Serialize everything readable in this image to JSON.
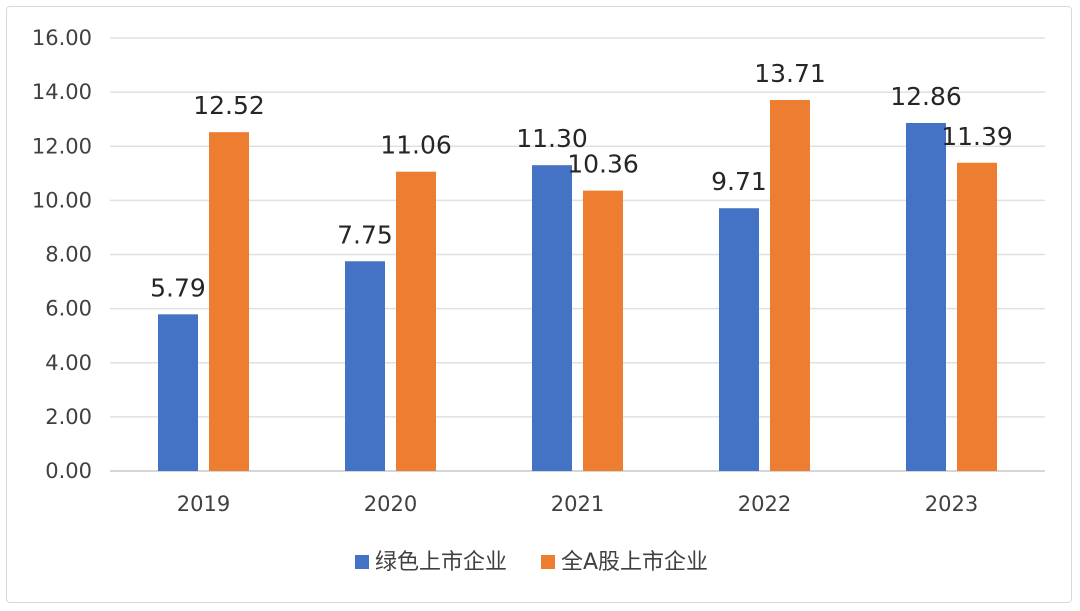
{
  "chart_data": {
    "type": "bar",
    "title": "",
    "xlabel": "",
    "ylabel": "",
    "categories": [
      "2019",
      "2020",
      "2021",
      "2022",
      "2023"
    ],
    "series": [
      {
        "name": "绿色上市企业",
        "color": "#4472c4",
        "values": [
          5.79,
          7.75,
          11.3,
          9.71,
          12.86
        ],
        "labels": [
          "5.79",
          "7.75",
          "11.30",
          "9.71",
          "12.86"
        ]
      },
      {
        "name": "全A股上市企业",
        "color": "#ed7d31",
        "values": [
          12.52,
          11.06,
          10.36,
          13.71,
          11.39
        ],
        "labels": [
          "12.52",
          "11.06",
          "10.36",
          "13.71",
          "11.39"
        ]
      }
    ],
    "ylim": [
      0,
      16
    ],
    "yticks": [
      "0.00",
      "2.00",
      "4.00",
      "6.00",
      "8.00",
      "10.00",
      "12.00",
      "14.00",
      "16.00"
    ],
    "grid": true,
    "legend": "bottom"
  }
}
